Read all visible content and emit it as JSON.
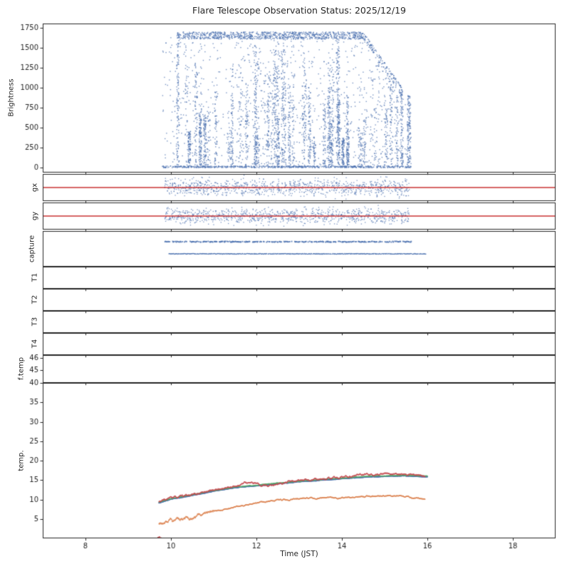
{
  "title": "Flare Telescope Observation Status: 2025/12/19",
  "chart_data": {
    "type": "scatter",
    "title": "Flare Telescope Observation Status: 2025/12/19",
    "xlabel": "Time (JST)",
    "xlim": [
      7,
      19
    ],
    "xticks": [
      8,
      10,
      12,
      14,
      16,
      18
    ],
    "colors": {
      "scatter": "#4C72B0",
      "red_line": "#C83232",
      "temp_red": "#C44E52",
      "temp_green": "#55A868",
      "temp_blue": "#4C72B0",
      "temp_orange": "#DD8452",
      "axis": "#262626"
    },
    "panels": [
      {
        "name": "Brightness",
        "ylim": [
          -60,
          1800
        ],
        "yticks": [
          0,
          250,
          500,
          750,
          1000,
          1250,
          1500,
          1750
        ],
        "scatter": {
          "t_range": [
            9.8,
            15.62
          ],
          "cap": 1690,
          "decay_start": 14.5,
          "decay_end": 15.57,
          "decay_floor": 880,
          "baseline_points": 650,
          "column_count": 60,
          "mid_points": 900,
          "top_band_points": 1100,
          "edge_drop": {
            "t": [
              15.53,
              15.61
            ],
            "y": [
              0,
              900
            ],
            "n": 140
          }
        }
      },
      {
        "name": "gx",
        "ylim": [
          -1,
          1
        ],
        "red_line_y": 0,
        "scatter": {
          "t_range": [
            9.85,
            15.58
          ],
          "sigma": 0.38,
          "n": 950
        }
      },
      {
        "name": "gy",
        "ylim": [
          -1,
          1
        ],
        "red_line_y": 0,
        "scatter": {
          "t_range": [
            9.85,
            15.58
          ],
          "sigma": 0.34,
          "n": 950
        }
      },
      {
        "name": "capture",
        "ylim": [
          0,
          1
        ],
        "rows": [
          {
            "y": 0.7,
            "t_range": [
              9.85,
              15.66
            ],
            "density": 0.55,
            "step": 0.012,
            "size": 1.8
          },
          {
            "y": 0.36,
            "t_range": [
              9.95,
              15.97
            ],
            "density": 0.93,
            "step": 0.008,
            "size": 1.1
          }
        ]
      },
      {
        "name": "T1",
        "ylim": [
          0,
          1
        ]
      },
      {
        "name": "T2",
        "ylim": [
          0,
          1
        ]
      },
      {
        "name": "T3",
        "ylim": [
          0,
          1
        ]
      },
      {
        "name": "T4",
        "ylim": [
          0,
          1
        ]
      },
      {
        "name": "f.temp",
        "ylim": [
          44,
          46.2
        ],
        "yticks": [
          45,
          46
        ]
      },
      {
        "name": "temp.",
        "ylim": [
          0,
          40
        ],
        "yticks": [
          5,
          10,
          15,
          20,
          25,
          30,
          35,
          40
        ],
        "series": [
          {
            "name": "blue",
            "color_key": "temp_blue",
            "noise": 0.06,
            "size": 1.7,
            "t": [
              9.72,
              10.0,
              10.5,
              11.0,
              11.5,
              12.0,
              12.5,
              13.0,
              13.5,
              14.0,
              14.5,
              15.0,
              15.5,
              16.0
            ],
            "v": [
              9.15,
              10.05,
              11.05,
              12.15,
              13.05,
              13.55,
              14.05,
              14.55,
              14.95,
              15.35,
              15.75,
              15.95,
              16.05,
              15.85
            ]
          },
          {
            "name": "green",
            "color_key": "temp_green",
            "noise": 0.08,
            "size": 1.3,
            "t": [
              9.72,
              10.0,
              10.5,
              11.0,
              11.5,
              12.0,
              12.5,
              13.0,
              13.5,
              14.0,
              14.5,
              15.0,
              15.5,
              16.0
            ],
            "v": [
              9.3,
              10.2,
              11.2,
              12.3,
              13.2,
              13.7,
              14.2,
              14.7,
              15.1,
              15.5,
              15.9,
              16.1,
              16.2,
              16.0
            ]
          },
          {
            "name": "red",
            "color_key": "temp_red",
            "noise": 0.3,
            "size": 1.4,
            "t": [
              9.72,
              10.0,
              10.3,
              10.6,
              10.9,
              11.2,
              11.5,
              11.75,
              11.95,
              12.15,
              12.45,
              12.75,
              13.05,
              13.35,
              13.65,
              13.95,
              14.25,
              14.55,
              14.85,
              15.15,
              15.45,
              15.7,
              15.95
            ],
            "v": [
              9.4,
              10.4,
              10.8,
              11.4,
              12.3,
              12.8,
              13.4,
              14.3,
              14.1,
              13.5,
              13.9,
              14.4,
              14.8,
              15.1,
              15.3,
              15.6,
              16.1,
              16.7,
              16.3,
              16.7,
              16.5,
              16.2,
              15.9
            ]
          },
          {
            "name": "orange",
            "color_key": "temp_orange",
            "noise": 0.2,
            "noise_early": 0.55,
            "size": 1.4,
            "t": [
              9.72,
              9.9,
              10.1,
              10.35,
              10.6,
              10.9,
              11.2,
              11.5,
              11.8,
              12.1,
              12.4,
              12.7,
              13.0,
              13.3,
              13.6,
              13.9,
              14.2,
              14.5,
              14.8,
              15.1,
              15.35,
              15.6,
              15.95
            ],
            "v": [
              3.6,
              4.0,
              4.6,
              5.2,
              5.7,
              6.5,
              7.3,
              8.1,
              8.8,
              9.4,
              9.8,
              10.0,
              10.2,
              10.3,
              10.4,
              10.4,
              10.5,
              10.7,
              10.9,
              11.0,
              10.9,
              10.5,
              10.0
            ]
          }
        ],
        "glitch": {
          "color_key": "temp_red",
          "points": [
            [
              9.7,
              0.2
            ],
            [
              9.73,
              0.35
            ],
            [
              9.76,
              0.1
            ]
          ]
        }
      }
    ]
  }
}
